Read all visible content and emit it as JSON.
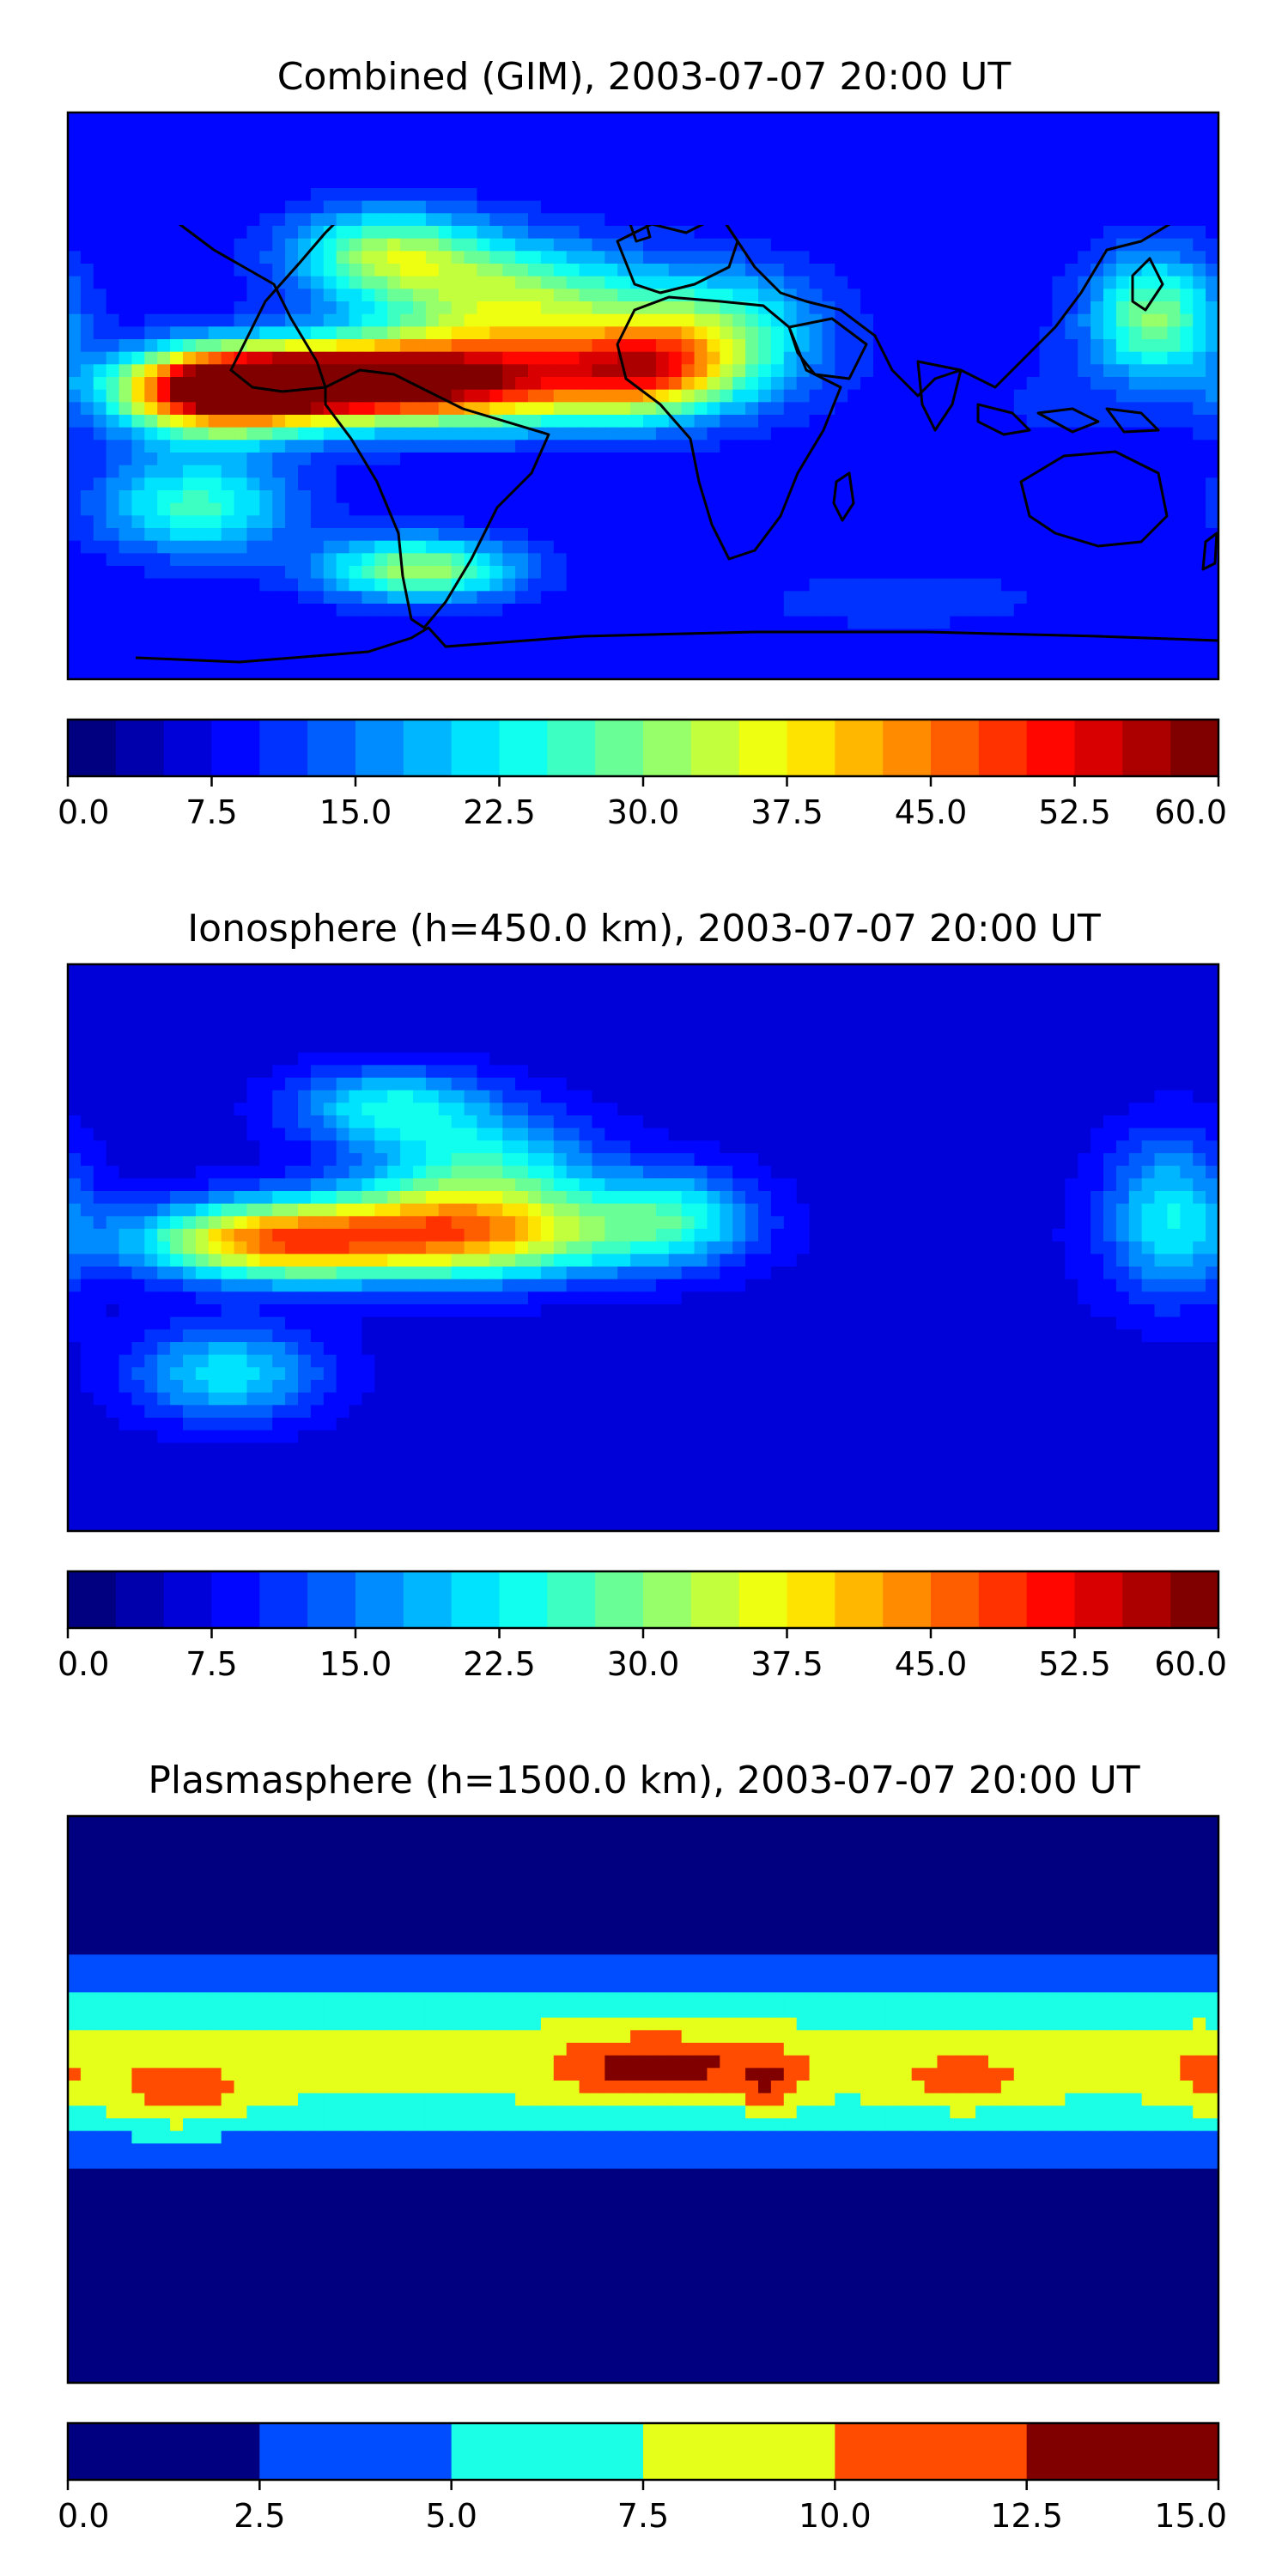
{
  "panels": [
    {
      "id": "combined",
      "title": "Combined (GIM), 2003-07-07 20:00 UT",
      "colorbar": {
        "min": 0.0,
        "max": 60.0,
        "levels": 24,
        "tick_values": [
          0.0,
          7.5,
          15.0,
          22.5,
          30.0,
          37.5,
          45.0,
          52.5,
          60.0
        ],
        "tick_labels": [
          "0.0",
          "7.5",
          "15.0",
          "22.5",
          "30.0",
          "37.5",
          "45.0",
          "52.5",
          "60.0"
        ]
      },
      "field": {
        "background": 8,
        "blobs": [
          {
            "lon": -60,
            "lat": 5,
            "value": 46,
            "slon": 60,
            "slat": 14
          },
          {
            "lon": -110,
            "lat": 4,
            "value": 40,
            "slon": 40,
            "slat": 10
          },
          {
            "lon": -135,
            "lat": 0,
            "value": 34,
            "slon": 30,
            "slat": 14
          },
          {
            "lon": -40,
            "lat": 30,
            "value": 24,
            "slon": 40,
            "slat": 18
          },
          {
            "lon": -80,
            "lat": 45,
            "value": 22,
            "slon": 30,
            "slat": 14
          },
          {
            "lon": 0,
            "lat": 10,
            "value": 24,
            "slon": 25,
            "slat": 15
          },
          {
            "lon": 25,
            "lat": 20,
            "value": 18,
            "slon": 30,
            "slat": 20
          },
          {
            "lon": 160,
            "lat": 25,
            "value": 22,
            "slon": 20,
            "slat": 20
          },
          {
            "lon": -70,
            "lat": -55,
            "value": 24,
            "slon": 30,
            "slat": 10
          },
          {
            "lon": -140,
            "lat": -35,
            "value": 18,
            "slon": 30,
            "slat": 15
          },
          {
            "lon": 120,
            "lat": -5,
            "value": 2,
            "slon": 40,
            "slat": 30
          },
          {
            "lon": 80,
            "lat": -65,
            "value": 3,
            "slon": 60,
            "slat": 12
          }
        ]
      }
    },
    {
      "id": "ionosphere",
      "title": "Ionosphere  (h=450.0 km), 2003-07-07 20:00 UT",
      "colorbar": {
        "min": 0.0,
        "max": 60.0,
        "levels": 24,
        "tick_values": [
          0.0,
          7.5,
          15.0,
          22.5,
          30.0,
          37.5,
          45.0,
          52.5,
          60.0
        ],
        "tick_labels": [
          "0.0",
          "7.5",
          "15.0",
          "22.5",
          "30.0",
          "37.5",
          "45.0",
          "52.5",
          "60.0"
        ]
      },
      "field": {
        "background": 6,
        "blobs": [
          {
            "lon": -60,
            "lat": 4,
            "value": 35,
            "slon": 55,
            "slat": 14
          },
          {
            "lon": -120,
            "lat": 2,
            "value": 30,
            "slon": 40,
            "slat": 12
          },
          {
            "lon": -50,
            "lat": 25,
            "value": 18,
            "slon": 35,
            "slat": 18
          },
          {
            "lon": -80,
            "lat": 45,
            "value": 16,
            "slon": 30,
            "slat": 12
          },
          {
            "lon": 10,
            "lat": 10,
            "value": 15,
            "slon": 25,
            "slat": 15
          },
          {
            "lon": 165,
            "lat": 10,
            "value": 16,
            "slon": 20,
            "slat": 25
          },
          {
            "lon": -130,
            "lat": -40,
            "value": 16,
            "slon": 30,
            "slat": 15
          },
          {
            "lon": 110,
            "lat": -5,
            "value": 1,
            "slon": 50,
            "slat": 30
          },
          {
            "lon": 60,
            "lat": -65,
            "value": 1,
            "slon": 80,
            "slat": 12
          }
        ]
      }
    },
    {
      "id": "plasmasphere",
      "title": "Plasmasphere (h=1500.0 km), 2003-07-07 20:00 UT",
      "colorbar": {
        "min": 0.0,
        "max": 15.0,
        "levels": 6,
        "tick_values": [
          0.0,
          2.5,
          5.0,
          7.5,
          10.0,
          12.5,
          15.0
        ],
        "tick_labels": [
          "0.0",
          "2.5",
          "5.0",
          "7.5",
          "10.0",
          "12.5",
          "15.0"
        ]
      },
      "field": {
        "background": 1.2,
        "band": {
          "lat": 12,
          "value": 7.6,
          "slat": 26
        },
        "blobs": [
          {
            "lon": -145,
            "lat": 0,
            "value": 4.0,
            "slon": 20,
            "slat": 10
          },
          {
            "lon": 5,
            "lat": 10,
            "value": 5.5,
            "slon": 28,
            "slat": 10
          },
          {
            "lon": 40,
            "lat": 5,
            "value": 3.8,
            "slon": 10,
            "slat": 10
          },
          {
            "lon": 100,
            "lat": 5,
            "value": 2.5,
            "slon": 20,
            "slat": 10
          },
          {
            "lon": 175,
            "lat": 5,
            "value": 2.0,
            "slon": 12,
            "slat": 12
          }
        ]
      }
    }
  ]
}
